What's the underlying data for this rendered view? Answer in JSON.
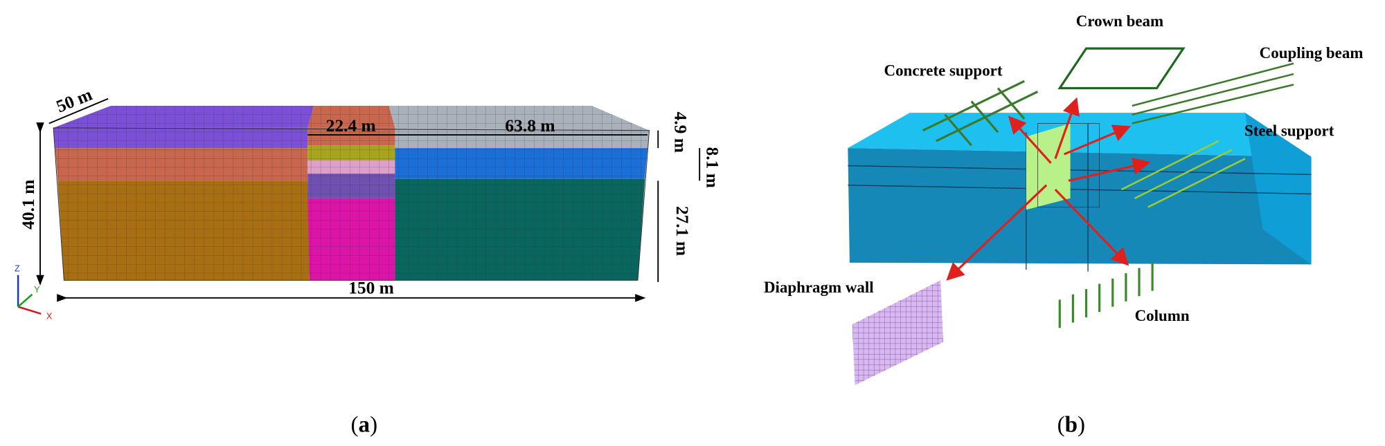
{
  "panel_a": {
    "dimensions": {
      "width_depth": "50 m",
      "middle_width": "22.4 m",
      "right_width": "63.8 m",
      "top_layer": "4.9 m",
      "second_layer": "8.1 m",
      "bottom_layer": "27.1 m",
      "height": "40.1 m",
      "length": "150 m"
    },
    "axes": {
      "z": "Z",
      "y": "Y",
      "x": "X"
    },
    "caption": {
      "open": "(",
      "letter": "a",
      "close": ")"
    }
  },
  "panel_b": {
    "labels": {
      "crown_beam": "Crown beam",
      "concrete_support": "Concrete support",
      "coupling_beam": "Coupling beam",
      "steel_support": "Steel support",
      "diaphragm_wall": "Diaphragm wall",
      "column": "Column"
    },
    "caption": {
      "open": "(",
      "letter": "b",
      "close": ")"
    }
  }
}
